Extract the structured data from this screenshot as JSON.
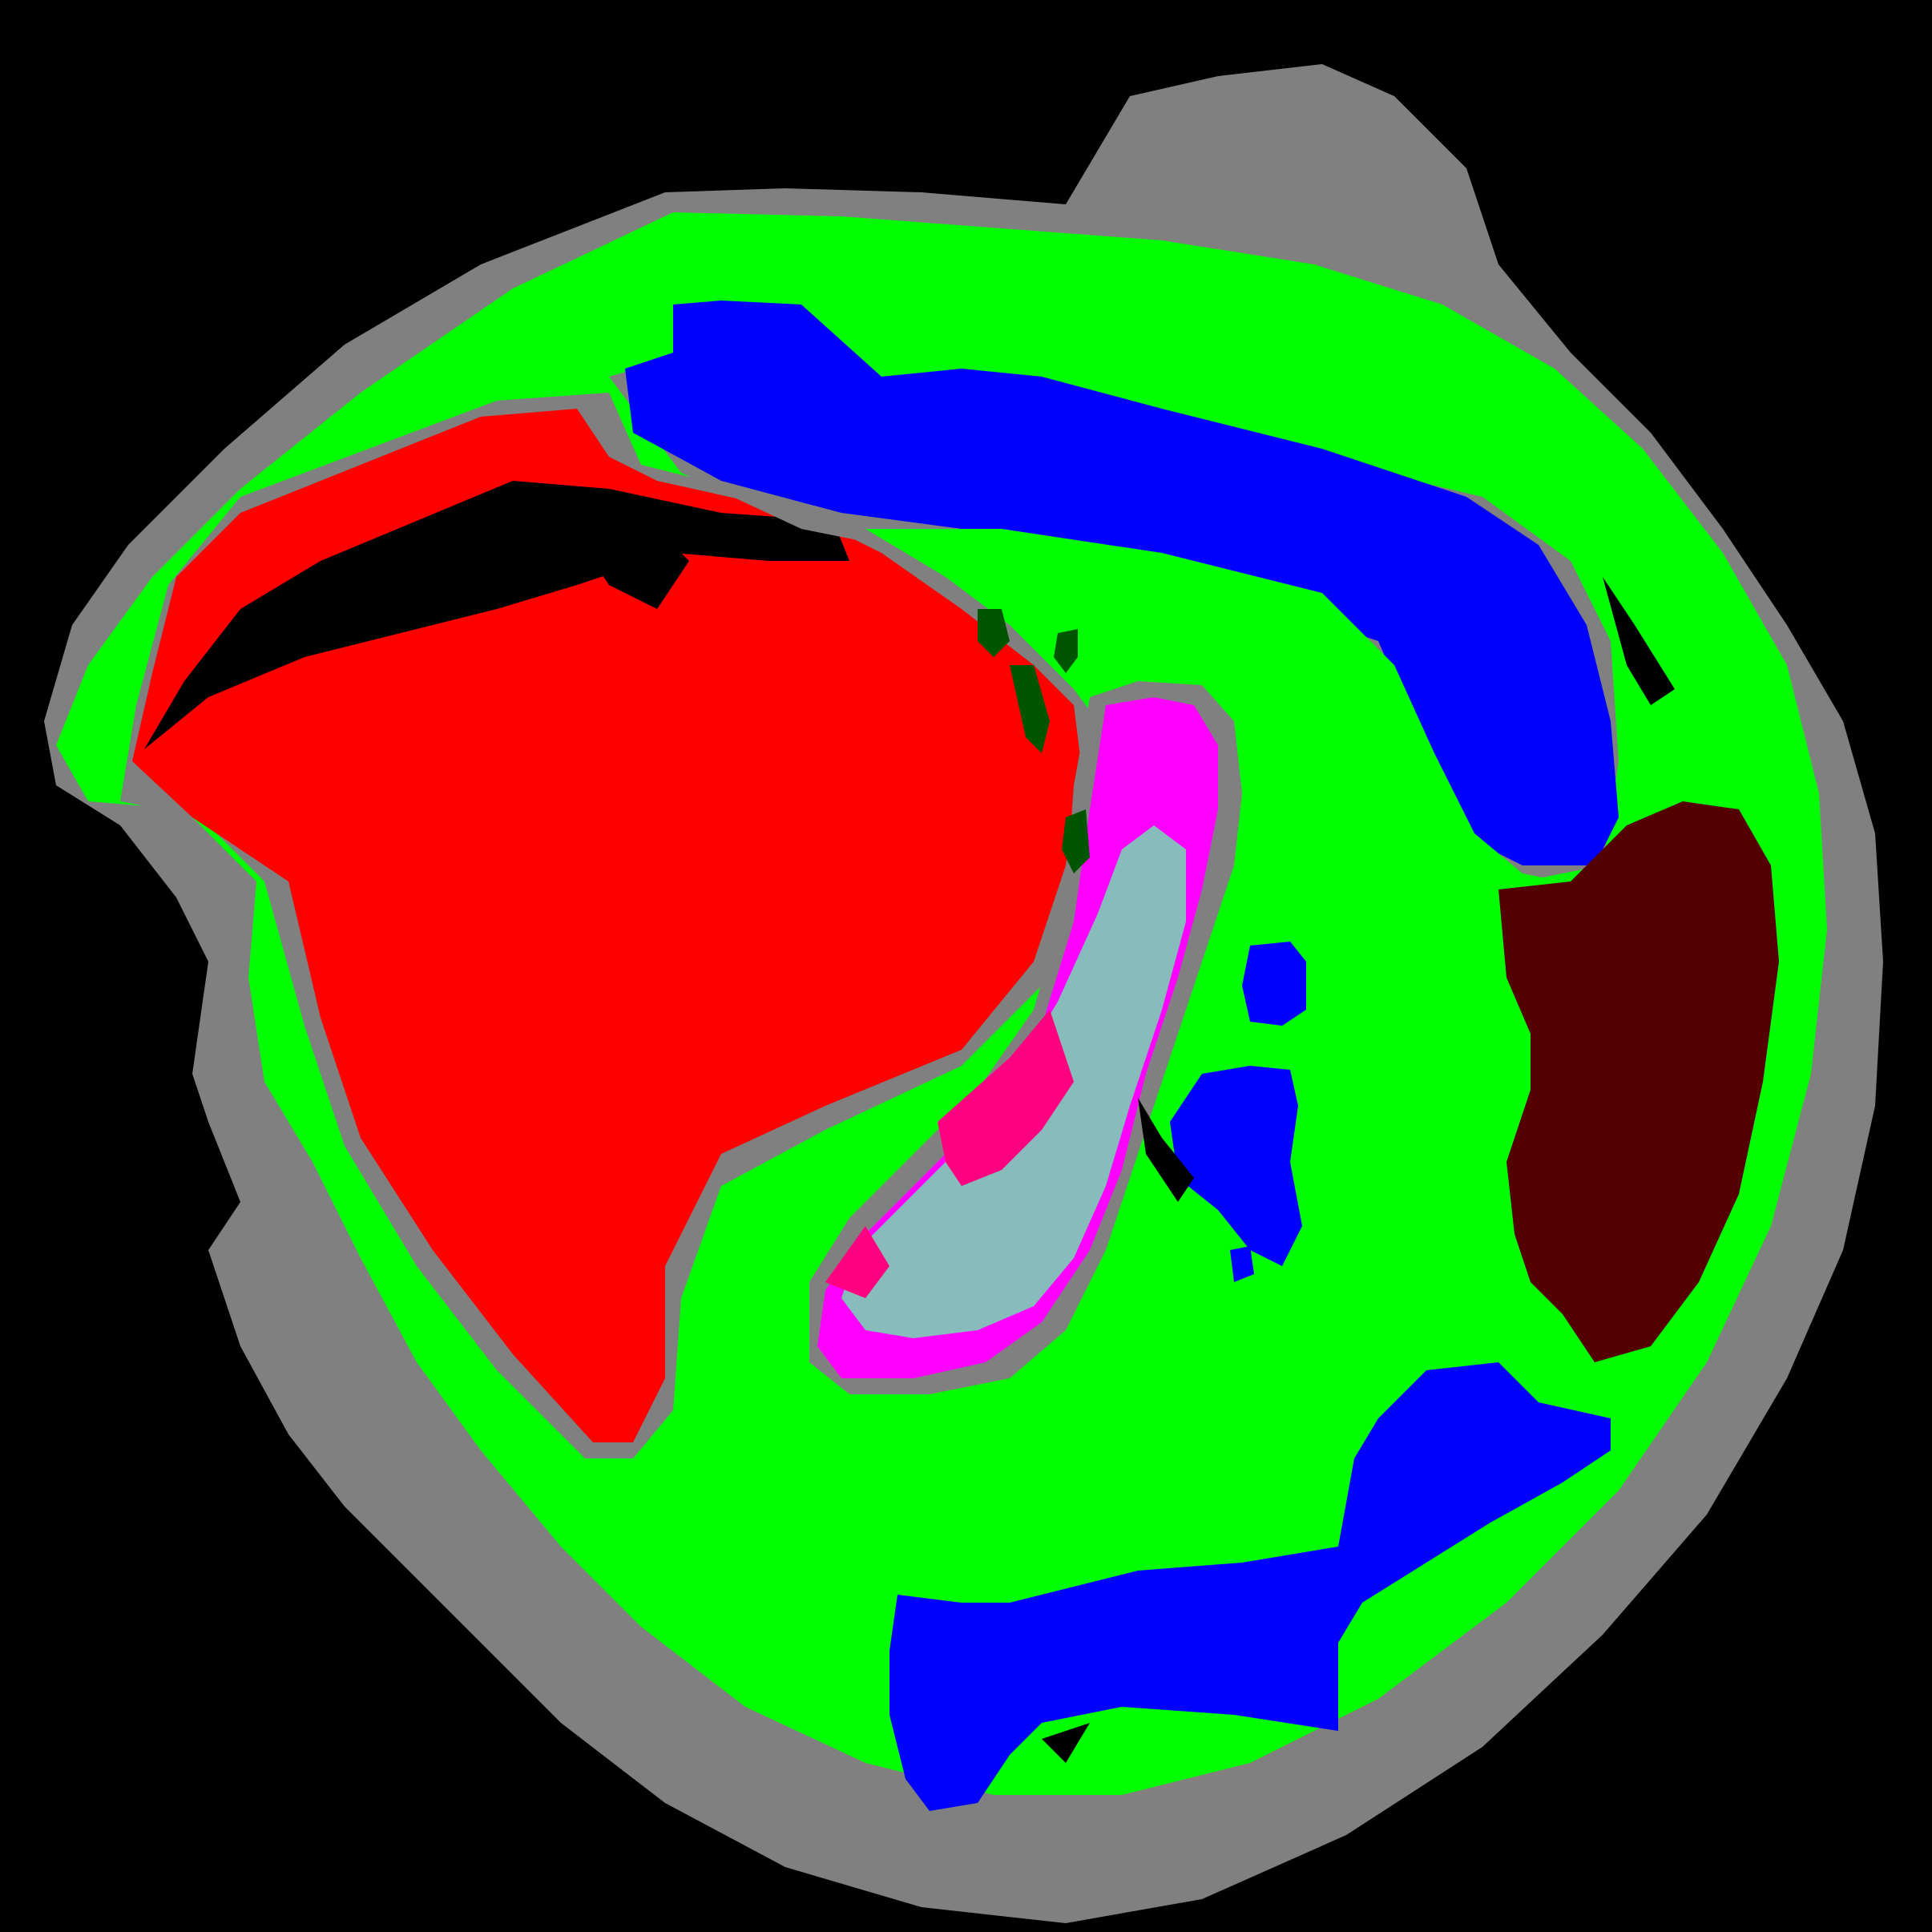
{
  "image": {
    "kind": "segmentation-mask",
    "background_color": "#000000",
    "palette": {
      "tissue_outline": "#808080",
      "tissue_main": "#00ff00",
      "region_red": "#ff0000",
      "region_blue": "#0000ff",
      "region_magenta": "#ff00ff",
      "region_teal": "#88bbbb",
      "region_pink": "#ff0080",
      "region_dark_red": "#550000",
      "region_dark_green": "#005500"
    }
  }
}
